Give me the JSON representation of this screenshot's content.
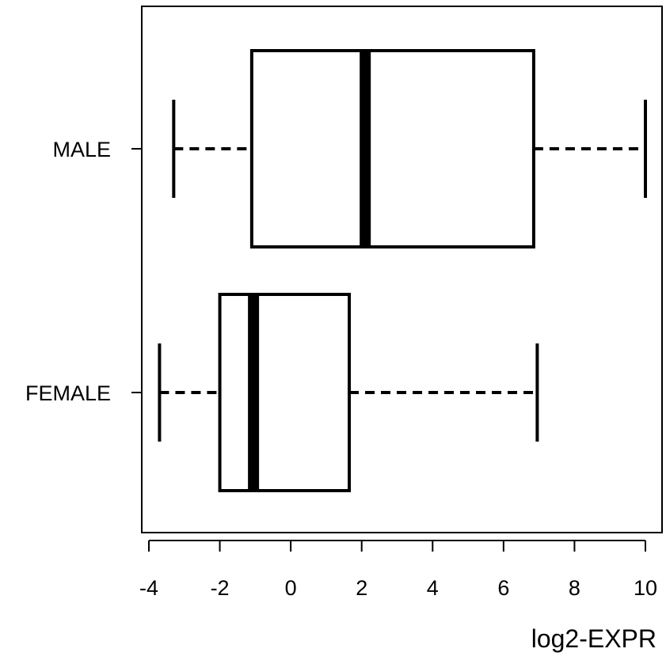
{
  "chart_data": {
    "type": "boxplot",
    "orientation": "horizontal",
    "xlabel": "log2-EXPR",
    "xlim": [
      -4,
      10
    ],
    "xticks": [
      -4,
      -2,
      0,
      2,
      4,
      6,
      8,
      10
    ],
    "categories": [
      "MALE",
      "FEMALE"
    ],
    "series": [
      {
        "name": "MALE",
        "min": -3.3,
        "q1": -1.1,
        "median": 2.1,
        "q3": 6.85,
        "max": 10.0
      },
      {
        "name": "FEMALE",
        "min": -3.7,
        "q1": -2.0,
        "median": -1.05,
        "q3": 1.65,
        "max": 6.95
      }
    ],
    "grid": false,
    "whisker_style": "dashed",
    "box_fill": "#ffffff",
    "line_color": "#000000"
  }
}
